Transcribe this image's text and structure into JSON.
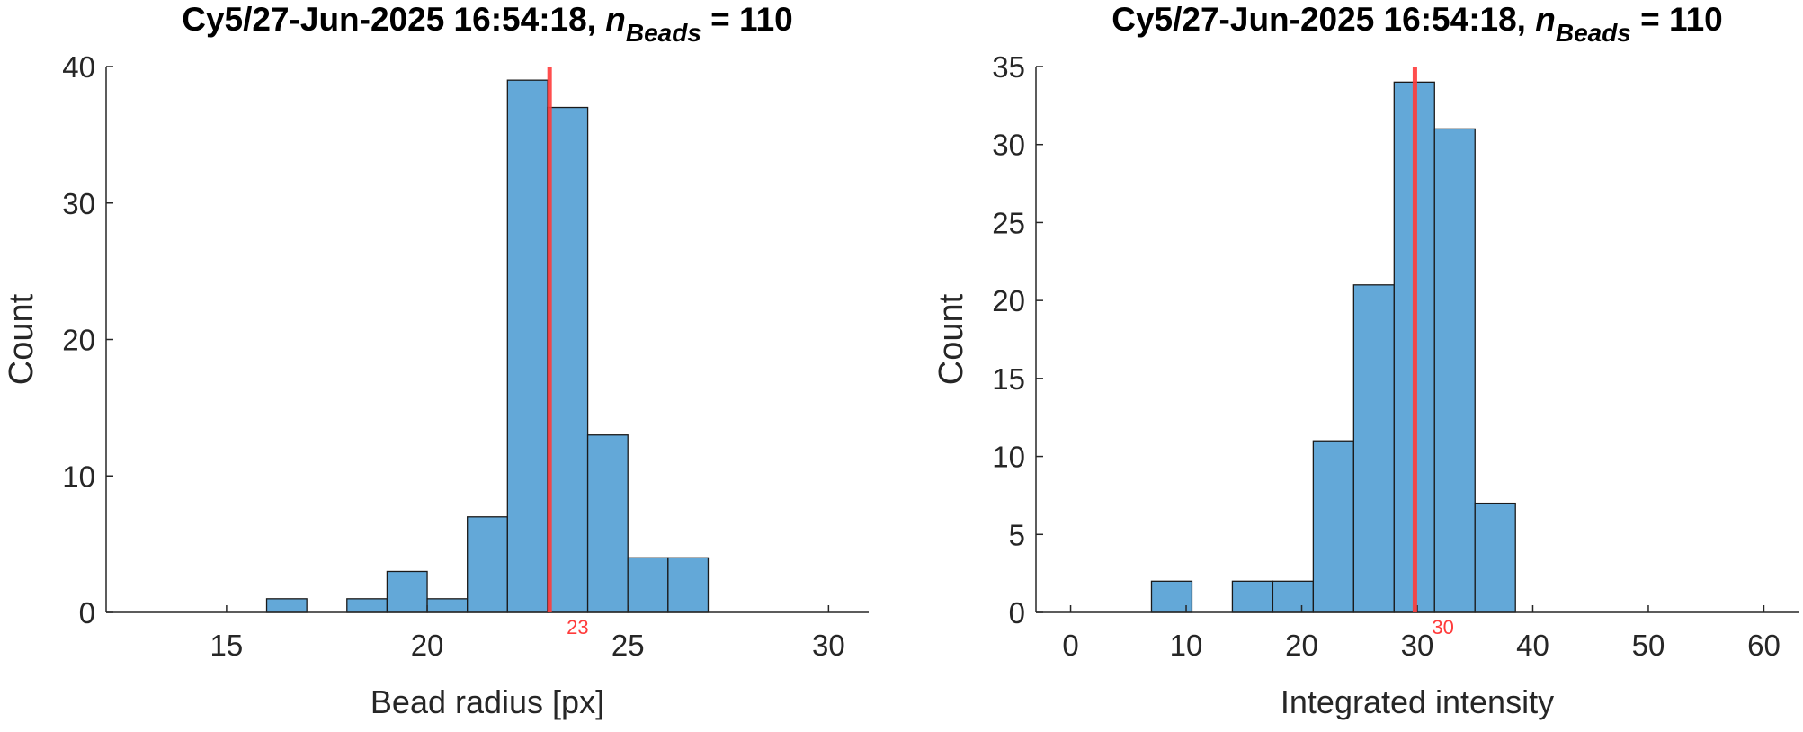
{
  "colors": {
    "bar_fill": "#63a8d8",
    "bar_stroke": "#1a1a1a",
    "axis": "#262626",
    "marker": "#ff3b3b",
    "text": "#000000"
  },
  "chart_data": [
    {
      "type": "bar",
      "title_main": "Cy5/27-Jun-2025 16:54:18, ",
      "title_var": "n",
      "title_sub": "Beads",
      "title_tail": " = 110",
      "xlabel": "Bead radius [px]",
      "ylabel": "Count",
      "xlim": [
        12,
        31
      ],
      "ylim": [
        0,
        40
      ],
      "xticks": [
        15,
        20,
        25,
        30
      ],
      "yticks": [
        0,
        10,
        20,
        30,
        40
      ],
      "bin_edges": [
        16,
        17,
        18,
        19,
        20,
        21,
        22,
        23,
        24,
        25,
        26,
        27
      ],
      "values": [
        1,
        0,
        1,
        3,
        1,
        7,
        39,
        37,
        13,
        4,
        4
      ],
      "marker_x": 23.05,
      "marker_label": "23",
      "grid": false
    },
    {
      "type": "bar",
      "title_main": "Cy5/27-Jun-2025 16:54:18, ",
      "title_var": "n",
      "title_sub": "Beads",
      "title_tail": " = 110",
      "xlabel": "Integrated intensity",
      "ylabel": "Count",
      "xlim": [
        -3,
        63
      ],
      "ylim": [
        0,
        35
      ],
      "xticks": [
        0,
        10,
        20,
        30,
        40,
        50,
        60
      ],
      "yticks": [
        0,
        5,
        10,
        15,
        20,
        25,
        30,
        35
      ],
      "bin_edges": [
        7,
        10.5,
        14,
        17.5,
        21,
        24.5,
        28,
        31.5,
        35,
        38.5
      ],
      "values": [
        2,
        0,
        2,
        2,
        11,
        21,
        34,
        31,
        7
      ],
      "marker_x": 29.8,
      "marker_label": "30",
      "grid": false
    }
  ]
}
